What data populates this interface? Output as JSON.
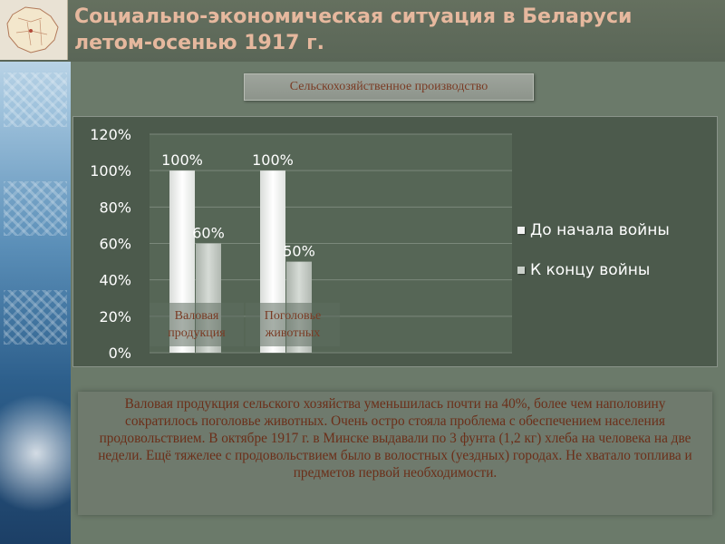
{
  "title": "Социально-экономическая ситуация в Беларуси летом-осенью 1917 г.",
  "subtitle": "Сельскохозяйственное производство",
  "chart_data": {
    "type": "bar",
    "categories": [
      "Валовая продукция",
      "Поголовье животных"
    ],
    "series": [
      {
        "name": "До начала войны",
        "values": [
          100,
          100
        ],
        "labels": [
          "100%",
          "100%"
        ],
        "color": "#f2f2f2"
      },
      {
        "name": "К концу войны",
        "values": [
          60,
          50
        ],
        "labels": [
          "60%",
          "50%"
        ],
        "color": "#c9cfc9"
      }
    ],
    "y_ticks": [
      "0%",
      "20%",
      "40%",
      "60%",
      "80%",
      "100%",
      "120%"
    ],
    "ylim": [
      0,
      120
    ],
    "grid": true,
    "legend_position": "right"
  },
  "body_text": "Валовая продукция сельского хозяйства уменьшилась почти на 40%, более чем наполовину сократилось поголовье животных. Очень остро стояла проблема с обеспечением населения продовольствием. В октябре 1917 г. в Минске выдавали по 3 фунта (1,2 кг) хлеба на человека на две недели. Ещё тяжелее с продовольствием было в волостных (уездных) городах. Не хватало топлива и предметов первой необходимости."
}
